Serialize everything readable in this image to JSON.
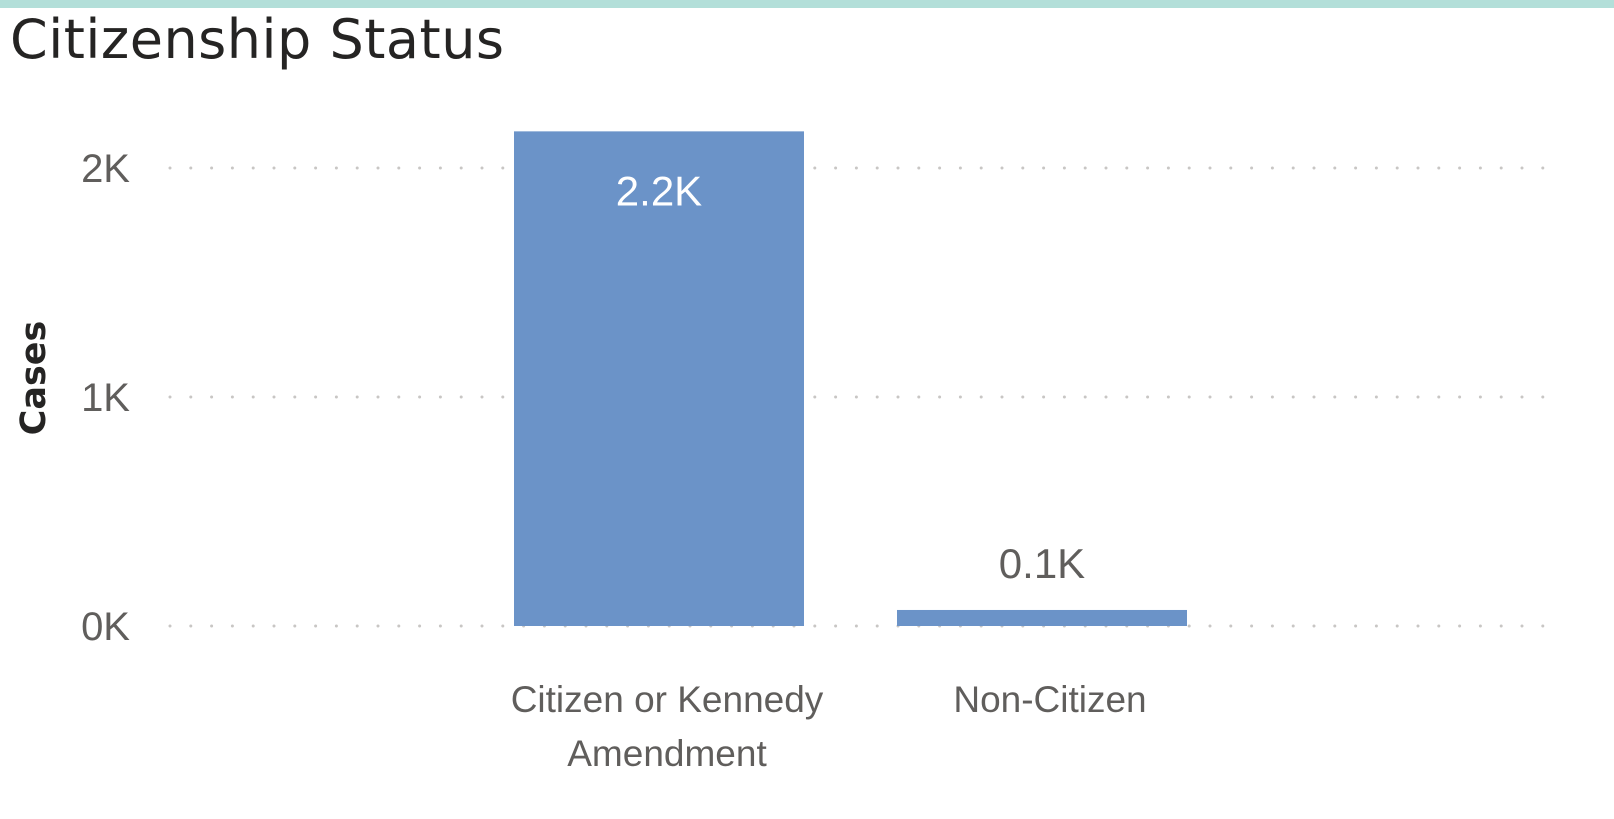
{
  "chart_data": {
    "type": "bar",
    "title": "Citizenship Status",
    "ylabel": "Cases",
    "xlabel": "",
    "categories": [
      [
        "Citizen or Kennedy",
        "Amendment"
      ],
      [
        "Non-Citizen"
      ]
    ],
    "values": [
      2160,
      70
    ],
    "data_labels": [
      "2.2K",
      "0.1K"
    ],
    "y_ticks": [
      {
        "value": 0,
        "label": "0K"
      },
      {
        "value": 1000,
        "label": "1K"
      },
      {
        "value": 2000,
        "label": "2K"
      }
    ],
    "ylim": [
      0,
      2160
    ],
    "grid": true,
    "bar_color": "#6b93c8",
    "grid_color": "#c8c6c4",
    "label_inside_color": "#ffffff",
    "label_outside_color": "#605e5c"
  }
}
